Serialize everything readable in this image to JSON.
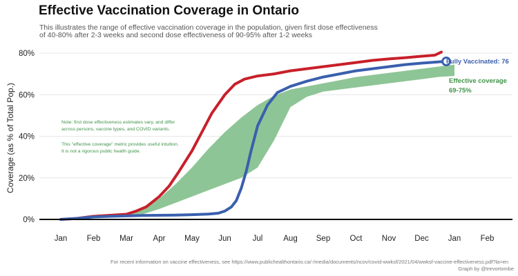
{
  "title": "Effective Vaccination Coverage in Ontario",
  "subtitle": [
    "This illustrates the range of effective vaccination coverage in the population, given first dose effectiveness",
    "of 40-80% after 2-3 weeks and second dose effectiveness of 90-95% after 1-2 weeks"
  ],
  "footer": {
    "source": "For recent information on vaccine effectiveness, see https://www.publichealthontario.ca/-/media/documents/ncov/covid-wwksf/2021/04/wwksf-vaccine-effectiveness.pdf?la=en",
    "credit": "Graph by @trevortombe"
  },
  "note": {
    "lines1": [
      "Note: first dose effectiveness estimates vary, and differ",
      "across persons, vaccine types, and COVID variants."
    ],
    "lines2": [
      "This \"effective coverage\" metric provides useful intuition.",
      "It is not a rigorous public health guide."
    ]
  },
  "labels": {
    "fully_vaccinated": "Fully Vaccinated: 76",
    "effective_line1": "Effective coverage",
    "effective_line2": "69-75%"
  },
  "colors": {
    "first_dose": "#c8202a",
    "fully_vaccinated": "#3a5fad",
    "effective_band": "#8ec596",
    "effective_text": "#3f9347",
    "fully_text": "#3a5fad",
    "grid": "#e6e6e6",
    "axis": "#000000"
  },
  "chart_data": {
    "type": "line",
    "title": "Effective Vaccination Coverage in Ontario",
    "xlabel": "",
    "ylabel": "Coverage (as % of Total Pop.)",
    "x_ticks": [
      "Jan",
      "Feb",
      "Mar",
      "Apr",
      "May",
      "Jun",
      "Jul",
      "Aug",
      "Sep",
      "Oct",
      "Nov",
      "Dec",
      "Jan",
      "Feb"
    ],
    "y_ticks": [
      "0%",
      "20%",
      "40%",
      "60%",
      "80%"
    ],
    "ylim": [
      0,
      80
    ],
    "xlim": [
      0,
      13.6
    ],
    "grid": true,
    "series": [
      {
        "name": "",
        "x": [
          0,
          0.5,
          1,
          1.5,
          2,
          2.3,
          2.6,
          3,
          3.3,
          3.6,
          4,
          4.3,
          4.6,
          5,
          5.3,
          5.6,
          6,
          6.5,
          7,
          7.5,
          8,
          8.5,
          9,
          9.5,
          10,
          10.5,
          11,
          11.4,
          11.6
        ],
        "y": [
          0,
          0.5,
          1.5,
          2,
          2.5,
          4,
          6,
          11,
          16,
          23,
          33,
          42,
          51,
          60,
          65,
          67.5,
          69,
          70,
          71.5,
          72.5,
          73.5,
          74.5,
          75.5,
          76.5,
          77.2,
          77.8,
          78.5,
          79,
          80.5
        ]
      },
      {
        "name": "Fully Vaccinated",
        "x": [
          0,
          0.5,
          1,
          1.5,
          2,
          2.5,
          3,
          3.5,
          4,
          4.5,
          4.8,
          5,
          5.2,
          5.35,
          5.5,
          5.65,
          5.8,
          6,
          6.3,
          6.6,
          7,
          7.5,
          8,
          8.5,
          9,
          9.5,
          10,
          10.5,
          11,
          11.5,
          11.75
        ],
        "y": [
          0,
          0.5,
          1.2,
          1.5,
          1.7,
          1.9,
          2,
          2.1,
          2.3,
          2.6,
          3,
          4,
          6,
          9,
          15,
          23,
          33,
          45,
          55,
          61,
          64,
          66.5,
          68.5,
          70,
          71.5,
          72.5,
          73.5,
          74.5,
          75.2,
          75.8,
          76
        ]
      },
      {
        "name": "Effective coverage",
        "type": "band",
        "x": [
          1.3,
          2,
          2.5,
          3,
          3.5,
          4,
          4.5,
          5,
          5.5,
          6,
          6.5,
          7,
          7.5,
          8,
          8.5,
          9,
          9.5,
          10,
          10.5,
          11,
          11.5,
          12
        ],
        "low": [
          1,
          1.5,
          2.5,
          5,
          8,
          11,
          14,
          17,
          20,
          25,
          38,
          54,
          59,
          61.5,
          62.5,
          63.5,
          64.5,
          65.5,
          66.5,
          67.5,
          68.5,
          69
        ],
        "high": [
          1,
          2,
          5,
          10,
          17,
          25,
          34,
          42,
          49,
          55,
          59.5,
          62.5,
          64,
          65.5,
          67,
          68.5,
          69.5,
          70.5,
          71.5,
          72.5,
          73.5,
          74.5
        ]
      }
    ],
    "end_marker": {
      "x": 11.75,
      "y": 76
    }
  }
}
